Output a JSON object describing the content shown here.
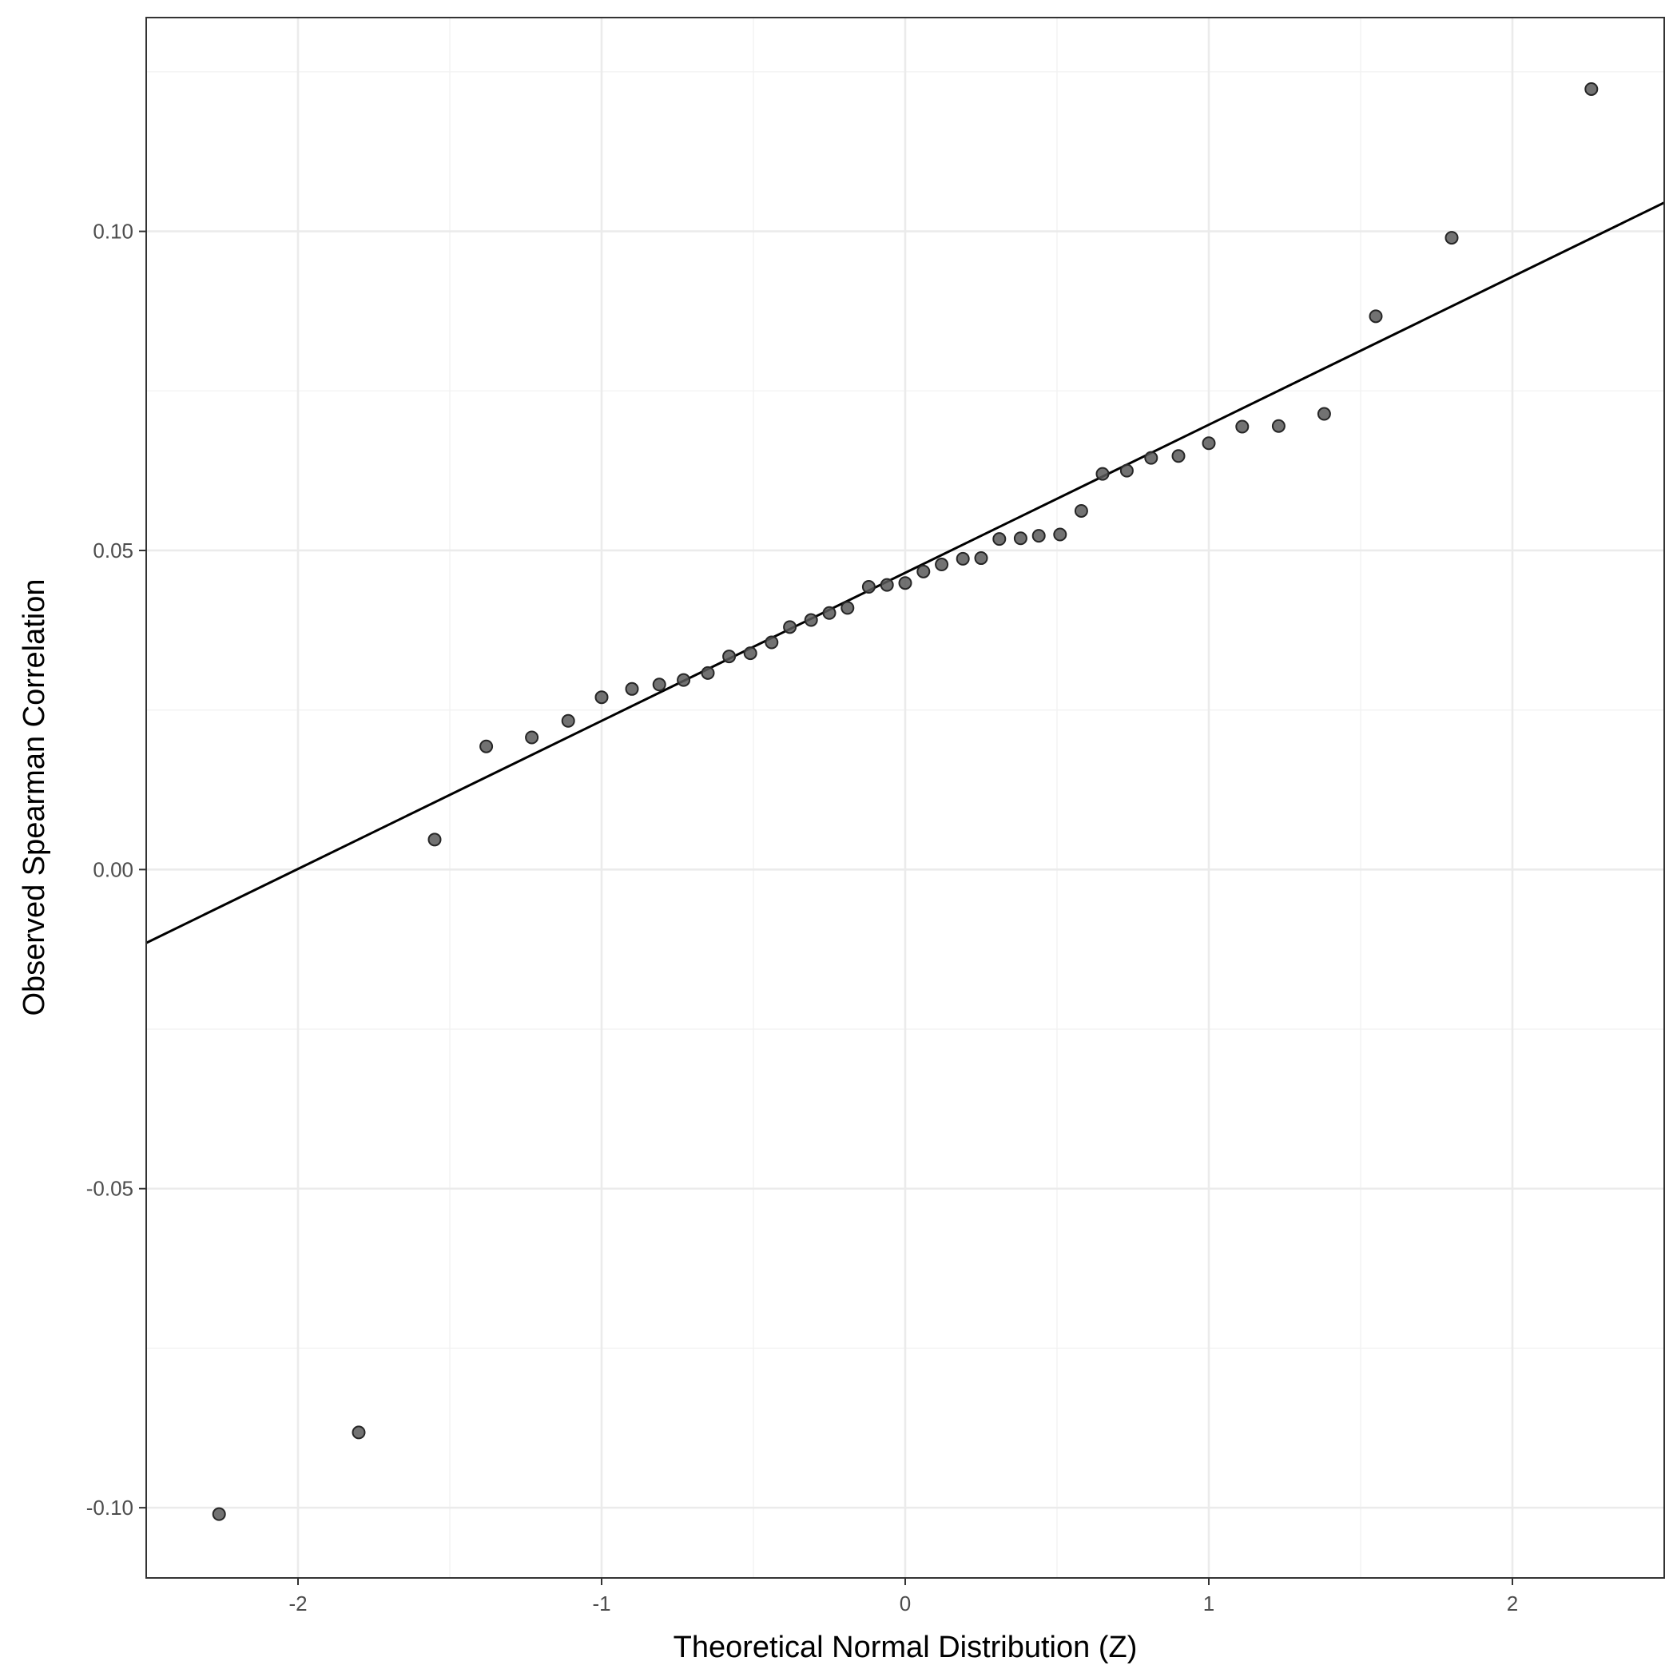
{
  "chart_data": {
    "type": "scatter",
    "title": "",
    "xlabel": "Theoretical Normal Distribution (Z)",
    "ylabel": "Observed Spearman Correlation",
    "xlim": [
      -2.5,
      2.5
    ],
    "ylim": [
      -0.111,
      0.1335
    ],
    "x_ticks": [
      -2,
      -1,
      0,
      1,
      2
    ],
    "x_tick_labels": [
      "-2",
      "-1",
      "0",
      "1",
      "2"
    ],
    "y_ticks": [
      -0.1,
      -0.05,
      0.0,
      0.05,
      0.1
    ],
    "y_tick_labels": [
      "-0.10",
      "-0.05",
      "0.00",
      "0.05",
      "0.10"
    ],
    "grid": true,
    "point_color": "#595959",
    "line_color": "#000000",
    "reference_line": {
      "intercept": 0.0465,
      "slope": 0.0232
    },
    "points": [
      {
        "x": -2.26,
        "y": -0.101
      },
      {
        "x": -1.8,
        "y": -0.0882
      },
      {
        "x": -1.55,
        "y": 0.0047
      },
      {
        "x": -1.38,
        "y": 0.0193
      },
      {
        "x": -1.23,
        "y": 0.0207
      },
      {
        "x": -1.11,
        "y": 0.0233
      },
      {
        "x": -1.0,
        "y": 0.027
      },
      {
        "x": -0.9,
        "y": 0.0283
      },
      {
        "x": -0.81,
        "y": 0.029
      },
      {
        "x": -0.73,
        "y": 0.0297
      },
      {
        "x": -0.65,
        "y": 0.0308
      },
      {
        "x": -0.58,
        "y": 0.0334
      },
      {
        "x": -0.51,
        "y": 0.0339
      },
      {
        "x": -0.44,
        "y": 0.0356
      },
      {
        "x": -0.38,
        "y": 0.038
      },
      {
        "x": -0.31,
        "y": 0.0391
      },
      {
        "x": -0.25,
        "y": 0.0402
      },
      {
        "x": -0.19,
        "y": 0.041
      },
      {
        "x": -0.12,
        "y": 0.0443
      },
      {
        "x": -0.06,
        "y": 0.0446
      },
      {
        "x": 0.0,
        "y": 0.0449
      },
      {
        "x": 0.06,
        "y": 0.0467
      },
      {
        "x": 0.12,
        "y": 0.0478
      },
      {
        "x": 0.19,
        "y": 0.0487
      },
      {
        "x": 0.25,
        "y": 0.0488
      },
      {
        "x": 0.31,
        "y": 0.0518
      },
      {
        "x": 0.38,
        "y": 0.0519
      },
      {
        "x": 0.44,
        "y": 0.0523
      },
      {
        "x": 0.51,
        "y": 0.0525
      },
      {
        "x": 0.58,
        "y": 0.0562
      },
      {
        "x": 0.65,
        "y": 0.062
      },
      {
        "x": 0.73,
        "y": 0.0625
      },
      {
        "x": 0.81,
        "y": 0.0645
      },
      {
        "x": 0.9,
        "y": 0.0648
      },
      {
        "x": 1.0,
        "y": 0.0668
      },
      {
        "x": 1.11,
        "y": 0.0694
      },
      {
        "x": 1.23,
        "y": 0.0695
      },
      {
        "x": 1.38,
        "y": 0.0714
      },
      {
        "x": 1.55,
        "y": 0.0867
      },
      {
        "x": 1.8,
        "y": 0.099
      },
      {
        "x": 2.26,
        "y": 0.1223
      }
    ]
  }
}
